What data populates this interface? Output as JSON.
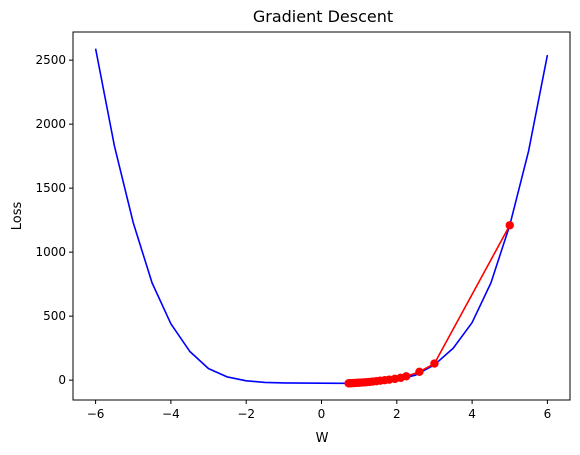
{
  "chart_data": {
    "type": "line",
    "title": "Gradient Descent",
    "xlabel": "W",
    "ylabel": "Loss",
    "xlim": [
      -6.6,
      6.6
    ],
    "ylim": [
      -155,
      2720
    ],
    "xticks": [
      -6,
      -4,
      -2,
      0,
      2,
      4,
      6
    ],
    "yticks": [
      0,
      500,
      1000,
      1500,
      2000,
      2500
    ],
    "grid": false,
    "series": [
      {
        "kind": "curve",
        "color": "#0000ff",
        "x": [
          -6,
          -5.5,
          -5,
          -4.5,
          -4,
          -3.5,
          -3,
          -2.5,
          -2,
          -1.5,
          -1,
          -0.5,
          0,
          0.5,
          1,
          1.5,
          2,
          2.5,
          3,
          3.5,
          4,
          4.5,
          5,
          5.5,
          6
        ],
        "y": [
          2590,
          1830,
          1230,
          760,
          440,
          225,
          90,
          25,
          -5,
          -18,
          -22,
          -23,
          -24,
          -25,
          -24,
          -18,
          2,
          40,
          120,
          250,
          450,
          760,
          1210,
          1790,
          2540
        ]
      },
      {
        "kind": "descent-path",
        "color": "#ff0000",
        "marker": "circle",
        "x": [
          5.0,
          3.0,
          2.6,
          2.25,
          2.1,
          1.95,
          1.8,
          1.68,
          1.56,
          1.46,
          1.36,
          1.28,
          1.2,
          1.13,
          1.06,
          1.0,
          0.95,
          0.9,
          0.86,
          0.82,
          0.79,
          0.76,
          0.74,
          0.72
        ],
        "y": [
          1210,
          130,
          65,
          30,
          18,
          10,
          4,
          0,
          -4,
          -8,
          -11,
          -14,
          -16,
          -18,
          -19,
          -20,
          -21,
          -22,
          -22.5,
          -23,
          -23.5,
          -24,
          -24,
          -24.5
        ]
      }
    ]
  }
}
